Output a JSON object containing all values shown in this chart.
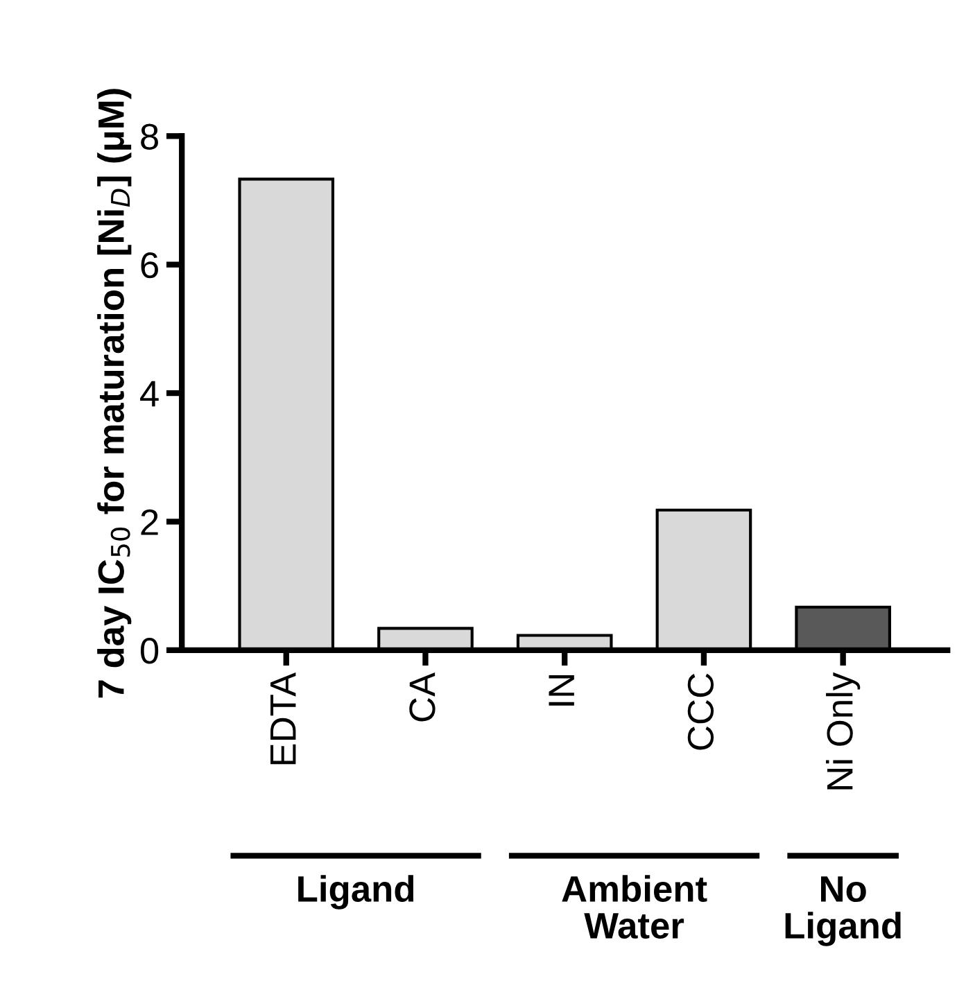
{
  "chart_data": {
    "type": "bar",
    "ylabel": "7 day IC$_{50}$ for maturation [Ni$_{D}$] (μM)",
    "categories": [
      "EDTA",
      "CA",
      "IN",
      "CCC",
      "Ni Only"
    ],
    "values": [
      7.33,
      0.34,
      0.23,
      2.18,
      0.67
    ],
    "colors": [
      "#d9d9d9",
      "#d9d9d9",
      "#d9d9d9",
      "#d9d9d9",
      "#595959"
    ],
    "ylim": [
      0,
      8
    ],
    "yticks": [
      0,
      2,
      4,
      6,
      8
    ],
    "grid": false,
    "legend": false,
    "annotations": [
      "Ligand",
      "Ambient\nWater",
      "No\nLigand"
    ]
  }
}
